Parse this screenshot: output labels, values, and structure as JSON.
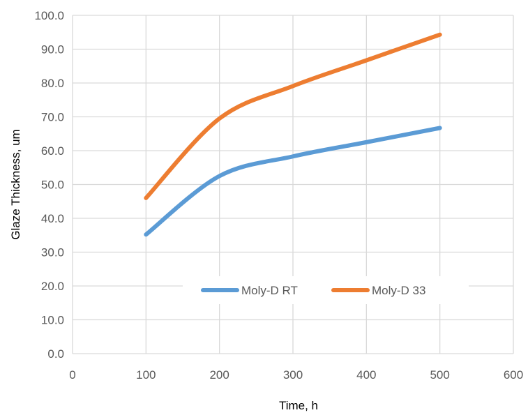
{
  "chart_data": {
    "type": "line",
    "title": "",
    "xlabel": "Time, h",
    "ylabel": "Glaze Thickness, um",
    "xlim": [
      0,
      600
    ],
    "ylim": [
      0,
      100
    ],
    "x_ticks": [
      "0",
      "100",
      "200",
      "300",
      "400",
      "500",
      "600"
    ],
    "y_ticks": [
      "0.0",
      "10.0",
      "20.0",
      "30.0",
      "40.0",
      "50.0",
      "60.0",
      "70.0",
      "80.0",
      "90.0",
      "100.0"
    ],
    "grid": true,
    "legend_position": "inside-lower-center",
    "series": [
      {
        "name": "Moly-D RT",
        "color": "#5B9BD5",
        "x": [
          100,
          200,
          300,
          400,
          500
        ],
        "y": [
          35.2,
          52.5,
          58.3,
          62.5,
          66.7
        ]
      },
      {
        "name": "Moly-D 33",
        "color": "#ED7D31",
        "x": [
          100,
          200,
          300,
          400,
          500
        ],
        "y": [
          46.0,
          69.5,
          79.1,
          86.7,
          94.3
        ]
      }
    ]
  }
}
